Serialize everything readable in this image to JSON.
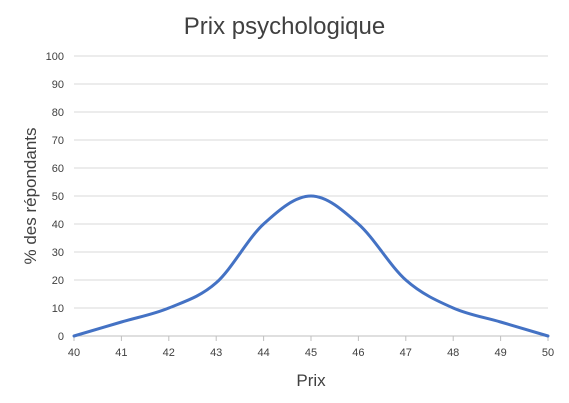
{
  "chart_data": {
    "type": "line",
    "title": "Prix psychologique",
    "xlabel": "Prix",
    "ylabel": "% des répondants",
    "x": [
      40,
      41,
      42,
      43,
      44,
      45,
      46,
      47,
      48,
      49,
      50
    ],
    "series": [
      {
        "values": [
          0,
          5,
          10,
          19,
          40,
          50,
          40,
          20,
          10,
          5,
          0
        ],
        "color": "#4472C4"
      }
    ],
    "ylim": [
      0,
      100
    ],
    "yticks": [
      0,
      10,
      20,
      30,
      40,
      50,
      60,
      70,
      80,
      90,
      100
    ],
    "xlim": [
      40,
      50
    ],
    "xticks": [
      40,
      41,
      42,
      43,
      44,
      45,
      46,
      47,
      48,
      49,
      50
    ],
    "grid": "horizontal",
    "smooth": true,
    "legend": "none"
  }
}
